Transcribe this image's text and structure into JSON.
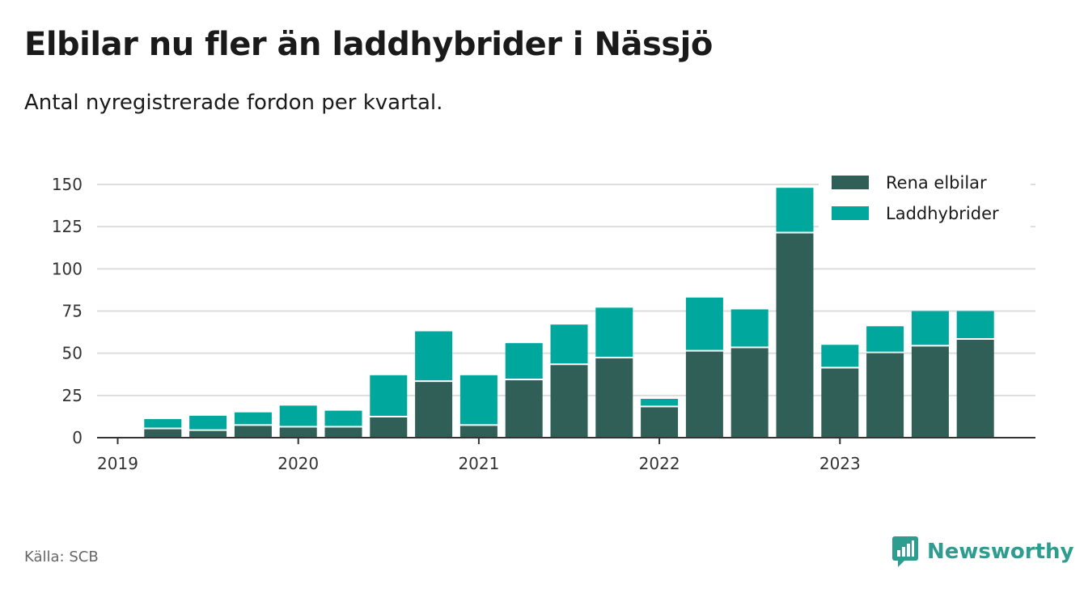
{
  "title": "Elbilar nu fler än laddhybrider i Nässjö",
  "subtitle": "Antal nyregistrerade fordon per kvartal.",
  "source": "Källa: SCB",
  "brand": "Newsworthy",
  "colors": {
    "elbilar": "#2f5f56",
    "laddhybrider": "#00a79d",
    "grid": "#dddddd",
    "axis": "#333333",
    "brand": "#2f9c90"
  },
  "chart_data": {
    "type": "bar",
    "stacked": true,
    "title": "Elbilar nu fler än laddhybrider i Nässjö",
    "subtitle": "Antal nyregistrerade fordon per kvartal.",
    "xlabel": "",
    "ylabel": "",
    "ylim": [
      0,
      150
    ],
    "yticks": [
      0,
      25,
      50,
      75,
      100,
      125,
      150
    ],
    "year_labels": [
      "2019",
      "2020",
      "2021",
      "2022",
      "2023"
    ],
    "categories": [
      "2019 Q2",
      "2019 Q3",
      "2019 Q4",
      "2020 Q1",
      "2020 Q2",
      "2020 Q3",
      "2020 Q4",
      "2021 Q1",
      "2021 Q2",
      "2021 Q3",
      "2021 Q4",
      "2022 Q1",
      "2022 Q2",
      "2022 Q3",
      "2022 Q4",
      "2023 Q1",
      "2023 Q2",
      "2023 Q3",
      "2023 Q4"
    ],
    "series": [
      {
        "name": "Rena elbilar",
        "values": [
          5,
          4,
          7,
          6,
          6,
          12,
          33,
          7,
          34,
          43,
          47,
          18,
          51,
          53,
          121,
          41,
          50,
          54,
          58
        ]
      },
      {
        "name": "Laddhybrider",
        "values": [
          6,
          9,
          8,
          13,
          10,
          25,
          30,
          30,
          22,
          24,
          30,
          5,
          32,
          23,
          27,
          14,
          16,
          21,
          17
        ]
      }
    ],
    "legend": "top-right",
    "grid": true
  }
}
